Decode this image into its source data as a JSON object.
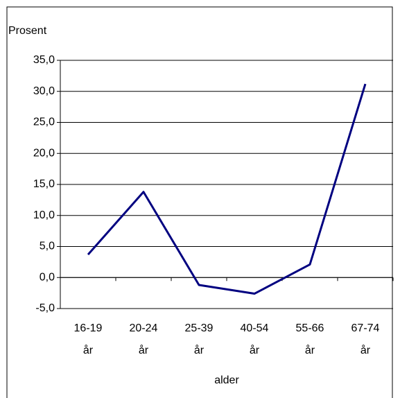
{
  "chart_data": {
    "type": "line",
    "ylabel": "Prosent",
    "xlabel": "alder",
    "categories": [
      "16-19 år",
      "20-24 år",
      "25-39 år",
      "40-54 år",
      "55-66 år",
      "67-74 år"
    ],
    "series": [
      {
        "name": "Prosent",
        "color": "#000080",
        "values": [
          3.7,
          13.8,
          -1.2,
          -2.6,
          2.1,
          31.2
        ]
      }
    ],
    "ylim": [
      -5,
      35
    ],
    "yticks": [
      {
        "value": -5,
        "label": "-5,0"
      },
      {
        "value": 0,
        "label": "0,0"
      },
      {
        "value": 5,
        "label": "5,0"
      },
      {
        "value": 10,
        "label": "10,0"
      },
      {
        "value": 15,
        "label": "15,0"
      },
      {
        "value": 20,
        "label": "20,0"
      },
      {
        "value": 25,
        "label": "25,0"
      },
      {
        "value": 30,
        "label": "30,0"
      },
      {
        "value": 35,
        "label": "35,0"
      }
    ],
    "grid": true
  }
}
